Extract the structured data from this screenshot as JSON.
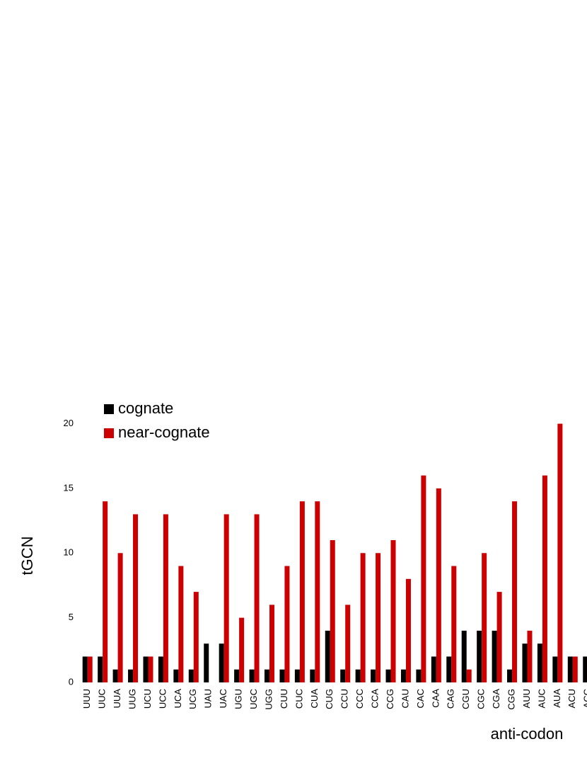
{
  "chart_data": {
    "type": "bar",
    "x_label": "anti-codon",
    "y_label": "tGCN",
    "categories": [
      "UUU",
      "UUC",
      "UUA",
      "UUG",
      "UCU",
      "UCC",
      "UCA",
      "UCG",
      "UAU",
      "UAC",
      "UGU",
      "UGC",
      "UGG",
      "CUU",
      "CUC",
      "CUA",
      "CUG",
      "CCU",
      "CCC",
      "CCA",
      "CCG",
      "CAU",
      "CAC",
      "CAA",
      "CAG",
      "CGU",
      "CGC",
      "CGA",
      "CGG",
      "AUU",
      "AUC",
      "AUA",
      "ACU",
      "ACC"
    ],
    "series": [
      {
        "name": "cognate",
        "color": "#000000",
        "values": [
          2,
          2,
          1,
          1,
          2,
          2,
          1,
          1,
          3,
          3,
          1,
          1,
          1,
          1,
          1,
          1,
          4,
          1,
          1,
          1,
          1,
          1,
          1,
          2,
          2,
          4,
          4,
          4,
          1,
          3,
          3,
          2,
          2,
          2
        ]
      },
      {
        "name": "near-cognate",
        "color": "#cc0000",
        "values": [
          2,
          14,
          10,
          13,
          2,
          13,
          9,
          7,
          0,
          13,
          5,
          13,
          6,
          9,
          14,
          14,
          11,
          6,
          10,
          10,
          11,
          8,
          16,
          15,
          9,
          1,
          10,
          7,
          14,
          4,
          16,
          20,
          2,
          null
        ]
      }
    ],
    "ylim": [
      0,
      22
    ],
    "yticks": [
      0,
      5,
      10,
      15,
      20
    ],
    "legend": "upper-left"
  }
}
